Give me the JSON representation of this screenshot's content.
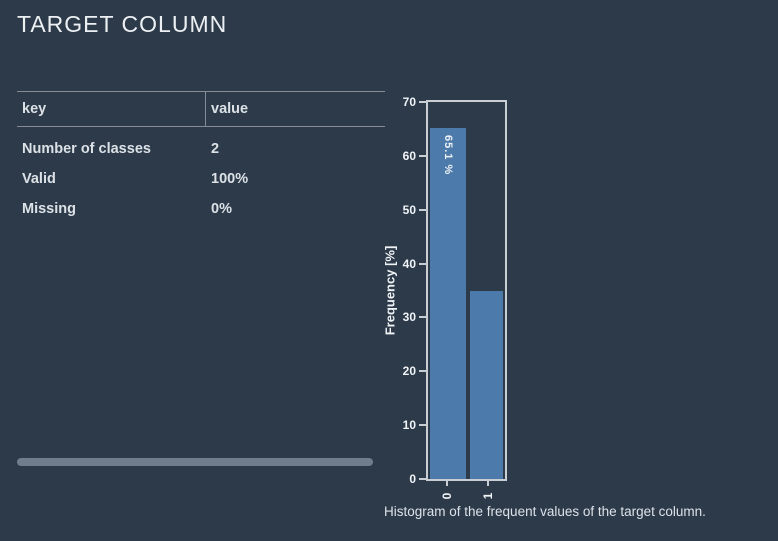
{
  "page": {
    "title": "TARGET COLUMN",
    "background_color": "#2c3a4a"
  },
  "summary_table": {
    "headers": [
      "key",
      "value"
    ],
    "rows": [
      {
        "key": "Number of classes",
        "value": "2"
      },
      {
        "key": "Valid",
        "value": "100%"
      },
      {
        "key": "Missing",
        "value": "0%"
      }
    ]
  },
  "chart_data": {
    "type": "bar",
    "categories": [
      "0",
      "1"
    ],
    "values": [
      65.1,
      34.9
    ],
    "bar_labels": [
      "65.1 %",
      ""
    ],
    "title": "",
    "xlabel": "",
    "ylabel": "Frequency [%]",
    "ylim": [
      0,
      70
    ],
    "yticks": [
      0,
      10,
      20,
      30,
      40,
      50,
      60,
      70
    ],
    "grid": false,
    "legend": "none",
    "bar_color": "#4c7aab",
    "axis_frame_color": "#c9ced4",
    "caption": "Histogram of the frequent values of the target column."
  }
}
